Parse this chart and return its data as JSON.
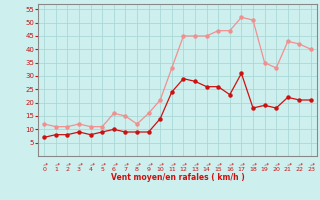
{
  "hours": [
    0,
    1,
    2,
    3,
    4,
    5,
    6,
    7,
    8,
    9,
    10,
    11,
    12,
    13,
    14,
    15,
    16,
    17,
    18,
    19,
    20,
    21,
    22,
    23
  ],
  "wind_mean": [
    7,
    8,
    8,
    9,
    8,
    9,
    10,
    9,
    9,
    9,
    14,
    24,
    29,
    28,
    26,
    26,
    23,
    31,
    18,
    19,
    18,
    22,
    21,
    21
  ],
  "wind_gust": [
    12,
    11,
    11,
    12,
    11,
    11,
    16,
    15,
    12,
    16,
    21,
    33,
    45,
    45,
    45,
    47,
    47,
    52,
    51,
    35,
    33,
    43,
    42,
    40
  ],
  "bg_color": "#cdf0ee",
  "grid_color": "#aad8d8",
  "mean_color": "#cc1111",
  "gust_color": "#f09090",
  "xlabel": "Vent moyen/en rafales ( km/h )",
  "xlabel_color": "#cc1111",
  "tick_color": "#cc1111",
  "spine_color": "#888888",
  "ylim": [
    0,
    57
  ],
  "yticks": [
    5,
    10,
    15,
    20,
    25,
    30,
    35,
    40,
    45,
    50,
    55
  ],
  "xlim": [
    -0.5,
    23.5
  ],
  "xticks": [
    0,
    1,
    2,
    3,
    4,
    5,
    6,
    7,
    8,
    9,
    10,
    11,
    12,
    13,
    14,
    15,
    16,
    17,
    18,
    19,
    20,
    21,
    22,
    23
  ]
}
